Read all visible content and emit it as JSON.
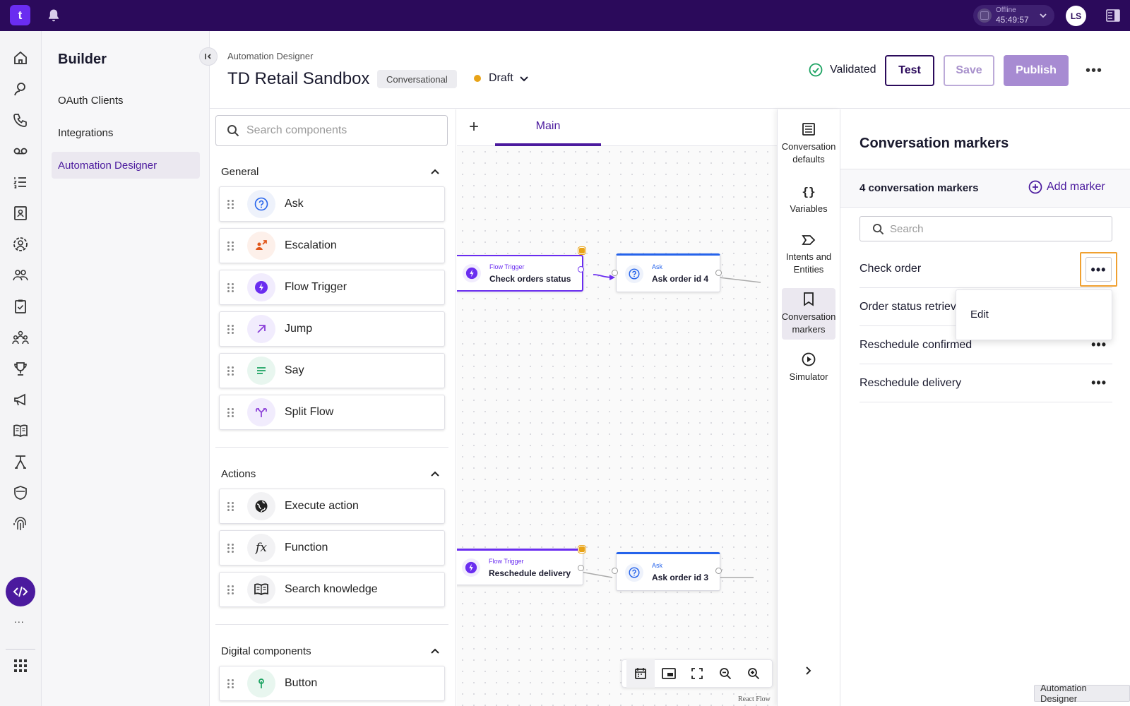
{
  "topbar": {
    "logo_text": "t",
    "status_label": "Offline",
    "status_timer": "45:49:57",
    "avatar_initials": "LS"
  },
  "leftnav": {
    "icons": [
      "home-icon",
      "chat-agent-icon",
      "phone-icon",
      "voicemail-icon",
      "list-icon",
      "contact-card-icon",
      "user-circle-icon",
      "team-icon",
      "clipboard-icon",
      "group-icon",
      "trophy-icon",
      "megaphone-icon",
      "book-icon",
      "workflow-icon",
      "shield-icon",
      "fingerprint-icon"
    ],
    "active_icon": "code-icon",
    "more": "...",
    "apps_icon": "apps-grid-icon"
  },
  "builder": {
    "title": "Builder",
    "items": [
      {
        "label": "OAuth Clients",
        "active": false
      },
      {
        "label": "Integrations",
        "active": false
      },
      {
        "label": "Automation Designer",
        "active": true
      }
    ]
  },
  "header": {
    "breadcrumb": "Automation Designer",
    "title": "TD Retail Sandbox",
    "type_chip": "Conversational",
    "status": "Draft",
    "validated_label": "Validated",
    "test_label": "Test",
    "save_label": "Save",
    "publish_label": "Publish"
  },
  "components": {
    "search_placeholder": "Search components",
    "sections": [
      {
        "title": "General",
        "items": [
          "Ask",
          "Escalation",
          "Flow Trigger",
          "Jump",
          "Say",
          "Split Flow"
        ]
      },
      {
        "title": "Actions",
        "items": [
          "Execute action",
          "Function",
          "Search knowledge"
        ]
      },
      {
        "title": "Digital components",
        "items": [
          "Button"
        ]
      }
    ]
  },
  "tabs": {
    "add": "+",
    "main": "Main"
  },
  "canvas": {
    "nodes": [
      {
        "type": "Flow Trigger",
        "label": "Check orders status"
      },
      {
        "type": "Ask",
        "label": "Ask order id 4"
      },
      {
        "type": "Flow Trigger",
        "label": "Reschedule delivery"
      },
      {
        "type": "Ask",
        "label": "Ask order id 3"
      }
    ],
    "attribution": "React Flow"
  },
  "sidetools": [
    {
      "label1": "Conversation",
      "label2": "defaults"
    },
    {
      "label1": "Variables",
      "label2": ""
    },
    {
      "label1": "Intents and",
      "label2": "Entities"
    },
    {
      "label1": "Conversation",
      "label2": "markers"
    },
    {
      "label1": "Simulator",
      "label2": ""
    }
  ],
  "markers": {
    "title": "Conversation markers",
    "count_label": "4 conversation markers",
    "add_label": "Add marker",
    "search_placeholder": "Search",
    "rows": [
      "Check order",
      "Order status retrieved",
      "Reschedule confirmed",
      "Reschedule delivery"
    ],
    "menu_edit": "Edit"
  },
  "footer_tag": "Automation Designer",
  "colors": {
    "topbar": "#2b0a5b",
    "accent": "#4b1a9e",
    "trigger": "#6a2df0",
    "ask": "#2563eb",
    "draft_dot": "#e8a317",
    "validated": "#1aa260",
    "focus_ring": "#f0a030"
  }
}
